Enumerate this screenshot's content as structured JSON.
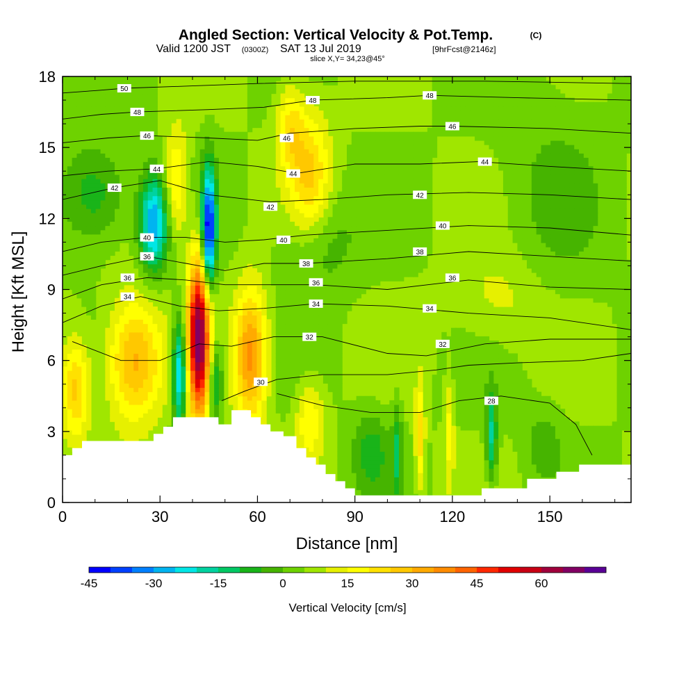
{
  "header": {
    "title": "Angled Section: Vertical Velocity & Pot.Temp.",
    "title_unit": "(C)",
    "valid_pre": "Valid 1200 JST",
    "valid_utc": "(0300Z)",
    "valid_date": "SAT 13 Jul 2019",
    "forecast": "[9hrFcst@2146z]",
    "slice": "slice X,Y= 34,23@45°"
  },
  "chart_data": {
    "type": "heatmap",
    "title": "Angled Section: Vertical Velocity & Pot.Temp. (C)",
    "xlabel": "Distance [nm]",
    "ylabel": "Height [Kft MSL]",
    "xlim": [
      0,
      175
    ],
    "ylim": [
      0,
      18
    ],
    "x_ticks": [
      0,
      30,
      60,
      90,
      120,
      150
    ],
    "x_tick_labels": [
      "0",
      "30",
      "60",
      "90",
      "120",
      "150"
    ],
    "y_ticks": [
      0,
      3,
      6,
      9,
      12,
      15,
      18
    ],
    "y_tick_labels": [
      "0",
      "3",
      "6",
      "9",
      "12",
      "15",
      "18"
    ],
    "colorbar": {
      "label": "Vertical Velocity [cm/s]",
      "min": -45,
      "step": 5,
      "tick_values": [
        -45,
        -30,
        -15,
        0,
        15,
        30,
        45,
        60
      ],
      "tick_labels": [
        "-45",
        "-30",
        "-15",
        "0",
        "15",
        "30",
        "45",
        "60"
      ],
      "colors": [
        "#0000ff",
        "#0040ff",
        "#0080ff",
        "#00b4f0",
        "#00e6e6",
        "#00d2a0",
        "#00c864",
        "#19b419",
        "#46b400",
        "#6ed200",
        "#a0e600",
        "#e6f000",
        "#ffff00",
        "#ffe100",
        "#ffc800",
        "#ffaa00",
        "#ff8c00",
        "#ff6400",
        "#ff2800",
        "#e10000",
        "#c80014",
        "#a0003c",
        "#820064",
        "#5a0096"
      ]
    },
    "background_level": 5,
    "terrain": [
      [
        0,
        2
      ],
      [
        3,
        2
      ],
      [
        3,
        2.3
      ],
      [
        6,
        2.3
      ],
      [
        6,
        2.6
      ],
      [
        28,
        2.6
      ],
      [
        28,
        2.9
      ],
      [
        31,
        2.9
      ],
      [
        31,
        3.2
      ],
      [
        34,
        3.2
      ],
      [
        34,
        3.6
      ],
      [
        48,
        3.6
      ],
      [
        48,
        3.3
      ],
      [
        52,
        3.3
      ],
      [
        52,
        3.9
      ],
      [
        58,
        3.9
      ],
      [
        58,
        3.6
      ],
      [
        61,
        3.6
      ],
      [
        61,
        3.3
      ],
      [
        64,
        3.3
      ],
      [
        64,
        3.0
      ],
      [
        68,
        3.0
      ],
      [
        68,
        2.8
      ],
      [
        72,
        2.8
      ],
      [
        72,
        2.3
      ],
      [
        75,
        2.3
      ],
      [
        75,
        1.9
      ],
      [
        78,
        1.9
      ],
      [
        78,
        1.6
      ],
      [
        81,
        1.6
      ],
      [
        81,
        1.2
      ],
      [
        84,
        1.2
      ],
      [
        84,
        0.9
      ],
      [
        87,
        0.9
      ],
      [
        87,
        0.6
      ],
      [
        90,
        0.6
      ],
      [
        90,
        0.3
      ],
      [
        129,
        0.3
      ],
      [
        129,
        0.6
      ],
      [
        143,
        0.6
      ],
      [
        143,
        1.0
      ],
      [
        152,
        1.0
      ],
      [
        152,
        1.3
      ],
      [
        159,
        1.3
      ],
      [
        159,
        1.6
      ],
      [
        175,
        1.6
      ]
    ],
    "velocity_features": [
      {
        "x": 22,
        "y": 6.0,
        "sx": 6,
        "sy": 1.8,
        "value": 28
      },
      {
        "x": 4,
        "y": 4.8,
        "sx": 3,
        "sy": 1.5,
        "value": 22
      },
      {
        "x": 42,
        "y": 7.0,
        "sx": 2.4,
        "sy": 2.4,
        "value": 62
      },
      {
        "x": 58,
        "y": 6.2,
        "sx": 3.5,
        "sy": 2.0,
        "value": 32
      },
      {
        "x": 36,
        "y": 5.5,
        "sx": 1.6,
        "sy": 1.6,
        "value": -35
      },
      {
        "x": 47,
        "y": 5.2,
        "sx": 1.6,
        "sy": 1.3,
        "value": -20
      },
      {
        "x": 35,
        "y": 13.5,
        "sx": 2.5,
        "sy": 1.6,
        "value": 18
      },
      {
        "x": 28,
        "y": 11.8,
        "sx": 3.0,
        "sy": 1.4,
        "value": -35
      },
      {
        "x": 45,
        "y": 11.5,
        "sx": 1.5,
        "sy": 1.8,
        "value": -50
      },
      {
        "x": 76,
        "y": 13.8,
        "sx": 4.5,
        "sy": 2.0,
        "value": 20
      },
      {
        "x": 70,
        "y": 16.0,
        "sx": 3.0,
        "sy": 1.3,
        "value": 15
      },
      {
        "x": 78,
        "y": 11.0,
        "sx": 8.0,
        "sy": 1.5,
        "value": -10
      },
      {
        "x": 10,
        "y": 13.0,
        "sx": 7.0,
        "sy": 1.5,
        "value": -15
      },
      {
        "x": 76,
        "y": 3.5,
        "sx": 3.0,
        "sy": 1.2,
        "value": 15
      },
      {
        "x": 95,
        "y": 2.2,
        "sx": 4.0,
        "sy": 1.2,
        "value": -12
      },
      {
        "x": 103,
        "y": 2.2,
        "sx": 1.0,
        "sy": 1.4,
        "value": -15
      },
      {
        "x": 110,
        "y": 2.8,
        "sx": 1.0,
        "sy": 1.6,
        "value": 18
      },
      {
        "x": 119,
        "y": 3.0,
        "sx": 1.0,
        "sy": 1.6,
        "value": 12
      },
      {
        "x": 132,
        "y": 2.8,
        "sx": 1.2,
        "sy": 1.3,
        "value": -22
      },
      {
        "x": 148,
        "y": 2.5,
        "sx": 4.0,
        "sy": 1.0,
        "value": -8
      },
      {
        "x": 150,
        "y": 13.0,
        "sx": 12.0,
        "sy": 4.0,
        "value": -5
      },
      {
        "x": 135,
        "y": 8.5,
        "sx": 10.0,
        "sy": 1.5,
        "value": 8
      }
    ],
    "isentropes": [
      {
        "label": "28",
        "label_x": 132,
        "label_y": 4.3,
        "points": [
          [
            66,
            4.6
          ],
          [
            80,
            4.1
          ],
          [
            95,
            3.8
          ],
          [
            110,
            3.8
          ],
          [
            122,
            4.3
          ],
          [
            135,
            4.5
          ],
          [
            150,
            4.2
          ],
          [
            158,
            3.3
          ],
          [
            163,
            2.0
          ]
        ]
      },
      {
        "label": "30",
        "label_x": 61,
        "label_y": 5.1,
        "points": [
          [
            49,
            4.3
          ],
          [
            56,
            4.7
          ],
          [
            66,
            5.2
          ],
          [
            80,
            5.4
          ],
          [
            100,
            5.4
          ],
          [
            115,
            5.6
          ],
          [
            125,
            5.8
          ],
          [
            140,
            5.9
          ],
          [
            160,
            6.0
          ],
          [
            175,
            6.3
          ]
        ]
      },
      {
        "label": "32",
        "label_x": 76,
        "label_y": 7.0,
        "points": [
          [
            3,
            6.8
          ],
          [
            18,
            6.0
          ],
          [
            30,
            6.0
          ],
          [
            42,
            6.7
          ],
          [
            52,
            6.6
          ],
          [
            65,
            7.0
          ],
          [
            80,
            7.0
          ],
          [
            100,
            6.3
          ],
          [
            112,
            6.2
          ],
          [
            130,
            6.7
          ],
          [
            150,
            6.9
          ],
          [
            175,
            6.9
          ]
        ]
      },
      {
        "label": "32",
        "label_x": 117,
        "label_y": 6.7,
        "points": []
      },
      {
        "label": "34",
        "label_x": 20,
        "label_y": 8.7,
        "points": [
          [
            0,
            7.6
          ],
          [
            12,
            8.3
          ],
          [
            24,
            8.7
          ],
          [
            36,
            8.3
          ],
          [
            48,
            8.1
          ],
          [
            62,
            8.2
          ],
          [
            78,
            8.4
          ],
          [
            100,
            8.3
          ],
          [
            125,
            8.0
          ],
          [
            150,
            7.8
          ],
          [
            175,
            7.3
          ]
        ]
      },
      {
        "label": "34",
        "label_x": 78,
        "label_y": 8.4,
        "points": []
      },
      {
        "label": "34",
        "label_x": 113,
        "label_y": 8.2,
        "points": []
      },
      {
        "label": "36",
        "label_x": 20,
        "label_y": 9.5,
        "points": [
          [
            0,
            8.6
          ],
          [
            12,
            9.2
          ],
          [
            26,
            9.5
          ],
          [
            38,
            9.4
          ],
          [
            50,
            9.2
          ],
          [
            62,
            9.2
          ],
          [
            78,
            9.2
          ],
          [
            100,
            9.0
          ],
          [
            125,
            9.4
          ],
          [
            150,
            9.1
          ],
          [
            175,
            9.0
          ]
        ]
      },
      {
        "label": "36",
        "label_x": 78,
        "label_y": 9.3,
        "points": []
      },
      {
        "label": "36",
        "label_x": 120,
        "label_y": 9.5,
        "points": []
      },
      {
        "label": "36",
        "label_x": 26,
        "label_y": 10.4,
        "points": [
          [
            0,
            9.6
          ],
          [
            12,
            10.0
          ],
          [
            26,
            10.4
          ],
          [
            38,
            10.1
          ],
          [
            50,
            9.8
          ],
          [
            62,
            10.1
          ],
          [
            75,
            10.1
          ],
          [
            100,
            10.3
          ],
          [
            125,
            10.6
          ],
          [
            150,
            10.4
          ],
          [
            175,
            10.2
          ]
        ]
      },
      {
        "label": "38",
        "label_x": 75,
        "label_y": 10.1,
        "points": []
      },
      {
        "label": "38",
        "label_x": 110,
        "label_y": 10.6,
        "points": []
      },
      {
        "label": "40",
        "label_x": 26,
        "label_y": 11.2,
        "points": [
          [
            0,
            10.6
          ],
          [
            12,
            11.0
          ],
          [
            26,
            11.2
          ],
          [
            38,
            11.2
          ],
          [
            50,
            11.0
          ],
          [
            62,
            11.1
          ],
          [
            75,
            11.3
          ],
          [
            100,
            11.5
          ],
          [
            125,
            11.7
          ],
          [
            150,
            11.6
          ],
          [
            175,
            11.3
          ]
        ]
      },
      {
        "label": "40",
        "label_x": 68,
        "label_y": 11.1,
        "points": []
      },
      {
        "label": "40",
        "label_x": 117,
        "label_y": 11.7,
        "points": []
      },
      {
        "label": "42",
        "label_x": 16,
        "label_y": 13.3,
        "points": [
          [
            0,
            12.8
          ],
          [
            16,
            13.3
          ],
          [
            30,
            13.6
          ],
          [
            45,
            13.0
          ],
          [
            64,
            12.7
          ],
          [
            80,
            12.8
          ],
          [
            100,
            13.0
          ],
          [
            125,
            13.1
          ],
          [
            150,
            13.0
          ],
          [
            175,
            12.8
          ]
        ]
      },
      {
        "label": "42",
        "label_x": 64,
        "label_y": 12.5,
        "points": []
      },
      {
        "label": "42",
        "label_x": 110,
        "label_y": 13.0,
        "points": []
      },
      {
        "label": "44",
        "label_x": 29,
        "label_y": 14.1,
        "points": [
          [
            0,
            13.8
          ],
          [
            14,
            14.0
          ],
          [
            29,
            14.1
          ],
          [
            45,
            14.4
          ],
          [
            60,
            14.2
          ],
          [
            72,
            13.9
          ],
          [
            90,
            14.3
          ],
          [
            110,
            14.3
          ],
          [
            128,
            14.4
          ],
          [
            150,
            14.2
          ],
          [
            175,
            14.0
          ]
        ]
      },
      {
        "label": "44",
        "label_x": 71,
        "label_y": 13.9,
        "points": []
      },
      {
        "label": "44",
        "label_x": 130,
        "label_y": 14.4,
        "points": []
      },
      {
        "label": "46",
        "label_x": 26,
        "label_y": 15.5,
        "points": [
          [
            0,
            15.2
          ],
          [
            14,
            15.4
          ],
          [
            26,
            15.5
          ],
          [
            45,
            15.4
          ],
          [
            60,
            15.3
          ],
          [
            70,
            15.6
          ],
          [
            90,
            15.8
          ],
          [
            110,
            15.9
          ],
          [
            120,
            15.9
          ],
          [
            150,
            15.8
          ],
          [
            175,
            15.6
          ]
        ]
      },
      {
        "label": "46",
        "label_x": 69,
        "label_y": 15.4,
        "points": []
      },
      {
        "label": "46",
        "label_x": 120,
        "label_y": 15.9,
        "points": []
      },
      {
        "label": "48",
        "label_x": 23,
        "label_y": 16.5,
        "points": [
          [
            0,
            16.2
          ],
          [
            12,
            16.4
          ],
          [
            23,
            16.5
          ],
          [
            45,
            16.6
          ],
          [
            62,
            16.7
          ],
          [
            77,
            17.0
          ],
          [
            100,
            17.1
          ],
          [
            113,
            17.2
          ],
          [
            140,
            17.1
          ],
          [
            175,
            17.0
          ]
        ]
      },
      {
        "label": "48",
        "label_x": 77,
        "label_y": 17.0,
        "points": []
      },
      {
        "label": "48",
        "label_x": 113,
        "label_y": 17.2,
        "points": []
      },
      {
        "label": "50",
        "label_x": 19,
        "label_y": 17.5,
        "points": [
          [
            0,
            17.3
          ],
          [
            10,
            17.4
          ],
          [
            19,
            17.5
          ],
          [
            40,
            17.6
          ],
          [
            60,
            17.7
          ],
          [
            90,
            17.8
          ],
          [
            130,
            17.8
          ],
          [
            175,
            17.7
          ]
        ]
      }
    ]
  }
}
